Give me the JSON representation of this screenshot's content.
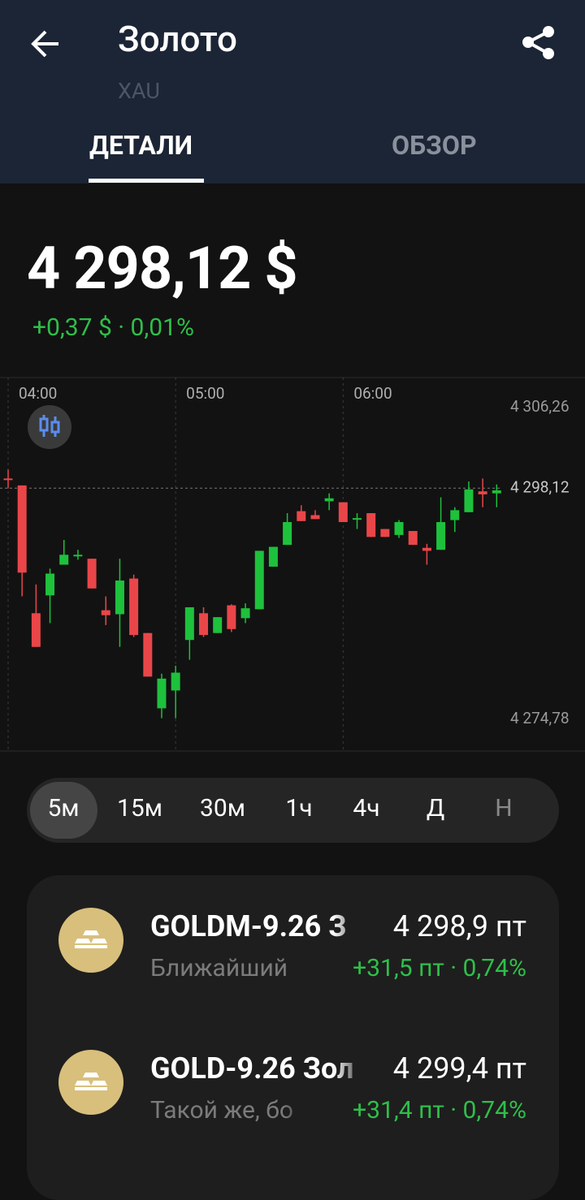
{
  "header": {
    "title": "Золото",
    "subtitle": "XAU"
  },
  "tabs": [
    "ДЕТАЛИ",
    "ОБЗОР"
  ],
  "price": {
    "value": "4 298,12 $",
    "change": "+0,37 $ · 0,01%"
  },
  "chart_data": {
    "type": "candlestick",
    "categories": [
      "04:00",
      null,
      null,
      null,
      null,
      null,
      null,
      null,
      null,
      null,
      null,
      null,
      "05:00",
      null,
      null,
      null,
      null,
      null,
      null,
      null,
      null,
      null,
      null,
      null,
      "06:00",
      null,
      null,
      null,
      null,
      null,
      null,
      null,
      null,
      null,
      null,
      null
    ],
    "open": [
      4299.1,
      4298.4,
      4285.5,
      4287.3,
      4290.4,
      4291.3,
      4291.0,
      4285.8,
      4285.4,
      4289.0,
      4283.5,
      4275.9,
      4277.7,
      4282.8,
      4285.5,
      4283.5,
      4286.3,
      4285.0,
      4285.9,
      4290.2,
      4292.4,
      4295.8,
      4295.4,
      4296.8,
      4296.7,
      4295.0,
      4295.6,
      4294.0,
      4293.4,
      4293.8,
      4292.1,
      4291.9,
      4294.9,
      4295.7,
      4297.8,
      4297.6
    ],
    "high": [
      4300.0,
      4298.4,
      4288.4,
      4290.0,
      4292.9,
      4291.9,
      4291.0,
      4287.2,
      4291.0,
      4289.4,
      4283.5,
      4279.4,
      4280.2,
      4286.1,
      4286.1,
      4285.1,
      4286.4,
      4286.5,
      4291.8,
      4292.2,
      4295.6,
      4296.4,
      4295.9,
      4297.6,
      4296.7,
      4295.6,
      4295.6,
      4294.0,
      4294.9,
      4293.8,
      4292.5,
      4297.2,
      4296.2,
      4298.8,
      4299.1,
      4298.5
    ],
    "low": [
      4298.1,
      4287.2,
      4282.1,
      4284.5,
      4290.4,
      4290.9,
      4288.0,
      4284.3,
      4282.1,
      4283.1,
      4279.1,
      4274.9,
      4274.9,
      4280.8,
      4283.1,
      4283.5,
      4283.6,
      4284.5,
      4285.9,
      4290.2,
      4292.4,
      4294.8,
      4295.0,
      4295.9,
      4294.7,
      4294.0,
      4293.2,
      4293.2,
      4293.1,
      4292.4,
      4290.4,
      4291.9,
      4293.7,
      4295.7,
      4296.2,
      4296.2
    ],
    "close": [
      4299.0,
      4289.6,
      4282.1,
      4289.5,
      4291.4,
      4291.4,
      4288.0,
      4285.3,
      4288.8,
      4283.3,
      4279.1,
      4278.9,
      4279.5,
      4286.1,
      4283.3,
      4285.1,
      4283.9,
      4286.0,
      4291.8,
      4292.2,
      4294.7,
      4294.8,
      4295.0,
      4297.1,
      4294.7,
      4295.1,
      4293.2,
      4293.2,
      4294.7,
      4292.4,
      4291.8,
      4294.7,
      4295.9,
      4298.0,
      4297.5,
      4297.9
    ],
    "up_color": "#1ec13c",
    "down_color": "#ea4649",
    "ylim": [
      4271.59,
      4309.29
    ],
    "yticks": [
      {
        "value": 4306.26,
        "label": "4 306,26"
      },
      {
        "value": 4274.78,
        "label": "4 274,78"
      }
    ],
    "current_price": {
      "value": 4298.12,
      "label": "4 298,12"
    }
  },
  "timeframes": [
    "5м",
    "15м",
    "30м",
    "1ч",
    "4ч",
    "Д",
    "Н"
  ],
  "instruments": [
    {
      "name": "GOLDM-9.26 З",
      "price": "4 298,9 пт",
      "description": "Ближайший",
      "change": "+31,5 пт · 0,74%"
    },
    {
      "name": "GOLD-9.26 Зол",
      "price": "4 299,4 пт",
      "description": "Такой же, бо",
      "change": "+31,4 пт · 0,74%"
    }
  ]
}
